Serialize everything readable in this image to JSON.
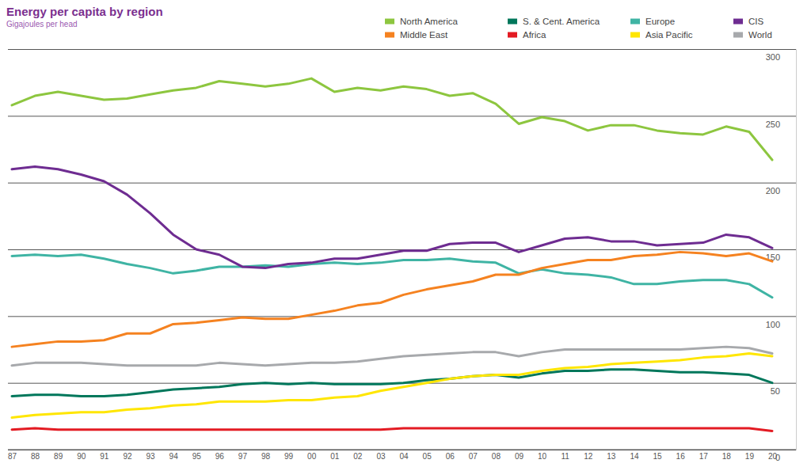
{
  "chart_data": {
    "type": "line",
    "title": "Energy per capita by region",
    "subtitle": "Gigajoules per head",
    "categories": [
      "87",
      "88",
      "89",
      "90",
      "91",
      "92",
      "93",
      "94",
      "95",
      "96",
      "97",
      "98",
      "99",
      "00",
      "01",
      "02",
      "03",
      "04",
      "05",
      "06",
      "07",
      "08",
      "09",
      "10",
      "11",
      "12",
      "13",
      "14",
      "15",
      "16",
      "17",
      "18",
      "19",
      "20"
    ],
    "ylim": [
      0,
      300
    ],
    "yticks": [
      0,
      50,
      100,
      150,
      200,
      250,
      300
    ],
    "grid": true,
    "legend": "top-right",
    "series": [
      {
        "name": "North America",
        "color": "#8dc63f",
        "values": [
          258,
          265,
          268,
          265,
          262,
          263,
          266,
          269,
          271,
          276,
          274,
          272,
          274,
          278,
          268,
          271,
          269,
          272,
          270,
          265,
          267,
          259,
          244,
          249,
          246,
          239,
          243,
          243,
          239,
          237,
          236,
          242,
          238,
          217
        ]
      },
      {
        "name": "S. & Cent. America",
        "color": "#00775b",
        "values": [
          40,
          41,
          41,
          40,
          40,
          41,
          43,
          45,
          46,
          47,
          49,
          50,
          49,
          50,
          49,
          49,
          49,
          50,
          52,
          53,
          55,
          56,
          54,
          57,
          59,
          59,
          60,
          60,
          59,
          58,
          58,
          57,
          56,
          50
        ]
      },
      {
        "name": "Europe",
        "color": "#3fb4a4",
        "values": [
          145,
          146,
          145,
          146,
          143,
          139,
          136,
          132,
          134,
          137,
          137,
          138,
          137,
          139,
          140,
          139,
          140,
          142,
          142,
          143,
          141,
          140,
          132,
          135,
          132,
          131,
          129,
          124,
          124,
          126,
          127,
          127,
          124,
          114
        ]
      },
      {
        "name": "CIS",
        "color": "#6e2c91",
        "values": [
          210,
          212,
          210,
          206,
          201,
          191,
          177,
          161,
          150,
          146,
          137,
          136,
          139,
          140,
          143,
          143,
          146,
          149,
          149,
          154,
          155,
          155,
          148,
          153,
          158,
          159,
          156,
          156,
          153,
          154,
          155,
          161,
          159,
          151
        ]
      },
      {
        "name": "Middle East",
        "color": "#f58220",
        "values": [
          77,
          79,
          81,
          81,
          82,
          87,
          87,
          94,
          95,
          97,
          99,
          98,
          98,
          101,
          104,
          108,
          110,
          116,
          120,
          123,
          126,
          131,
          131,
          136,
          139,
          142,
          142,
          145,
          146,
          148,
          147,
          145,
          147,
          141
        ]
      },
      {
        "name": "Africa",
        "color": "#e31b23",
        "values": [
          15,
          16,
          15,
          15,
          15,
          15,
          15,
          15,
          15,
          15,
          15,
          15,
          15,
          15,
          15,
          15,
          15,
          16,
          16,
          16,
          16,
          16,
          16,
          16,
          16,
          16,
          16,
          16,
          16,
          16,
          16,
          16,
          16,
          14
        ]
      },
      {
        "name": "Asia Pacific",
        "color": "#ffe600",
        "values": [
          24,
          26,
          27,
          28,
          28,
          30,
          31,
          33,
          34,
          36,
          36,
          36,
          37,
          37,
          39,
          40,
          44,
          47,
          50,
          53,
          55,
          56,
          56,
          59,
          61,
          62,
          64,
          65,
          66,
          67,
          69,
          70,
          72,
          70
        ]
      },
      {
        "name": "World",
        "color": "#a7a9ac",
        "values": [
          63,
          65,
          65,
          65,
          64,
          63,
          63,
          63,
          63,
          65,
          64,
          63,
          64,
          65,
          65,
          66,
          68,
          70,
          71,
          72,
          73,
          73,
          70,
          73,
          75,
          75,
          75,
          75,
          75,
          75,
          76,
          77,
          76,
          72
        ]
      }
    ]
  }
}
